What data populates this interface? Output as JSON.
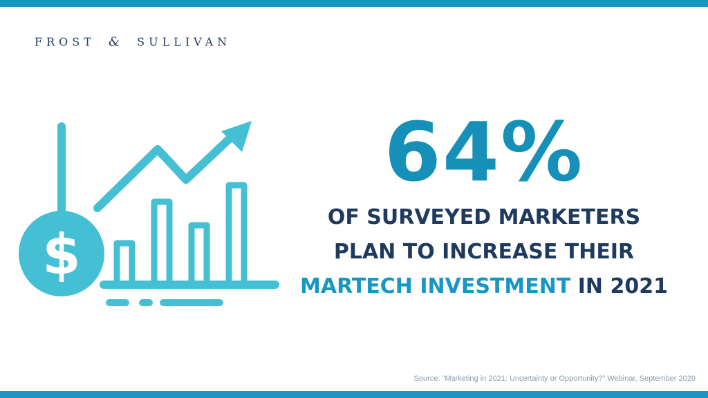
{
  "brand": {
    "logo_part1": "FROST",
    "logo_amp": "&",
    "logo_part2": "SULLIVAN"
  },
  "headline": {
    "percent": "64%",
    "line1": "OF SURVEYED MARKETERS",
    "line2": "PLAN TO INCREASE THEIR",
    "line3_highlight": "MARTECH INVESTMENT",
    "line3_rest": " IN 2021"
  },
  "source": "Source: \"Marketing in 2021: Uncertainty or Opportunity?\" Webinar, September 2020",
  "illustration": {
    "coin_symbol": "$"
  },
  "colors": {
    "accent_bar": "#1797c2",
    "icon": "#45bfd3",
    "navy": "#1f3a5f",
    "highlight": "#1797c2"
  }
}
